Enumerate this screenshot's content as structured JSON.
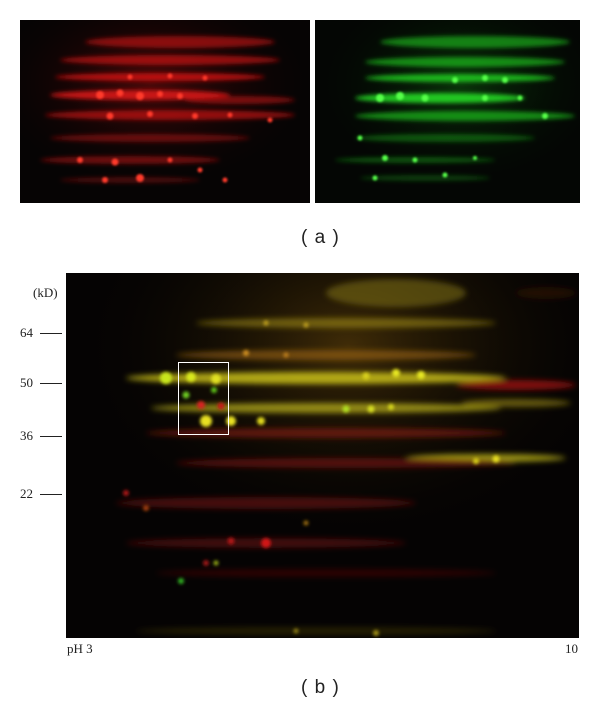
{
  "panel_a": {
    "caption": "( a )"
  },
  "panel_b": {
    "caption": "( b )",
    "unit": "(kD)",
    "mw_markers": [
      "64",
      "50",
      "36",
      "22"
    ],
    "ph_start": "pH 3",
    "ph_end": "10"
  },
  "colors": {
    "cy3_channel": "#ff2020",
    "cy5_channel": "#2cff2c",
    "overlap": "#e6e020",
    "background": "#000000"
  }
}
